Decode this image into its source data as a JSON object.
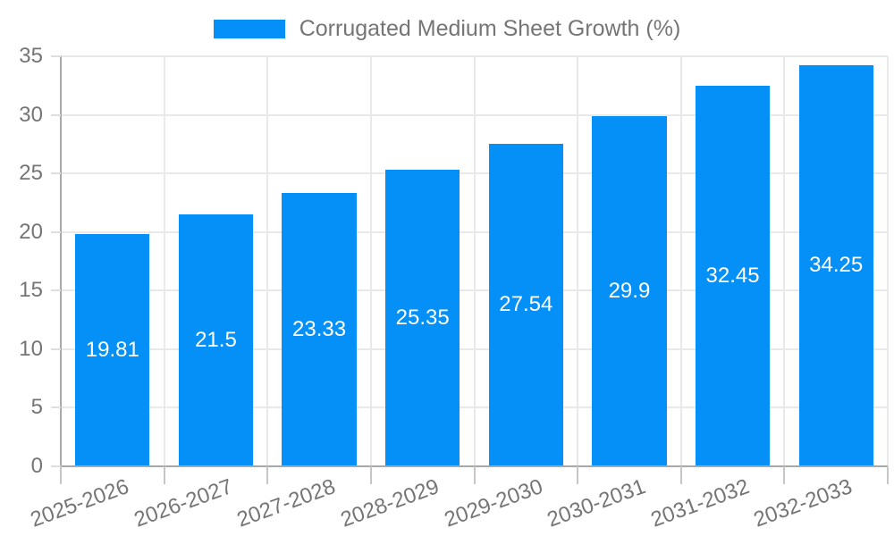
{
  "chart_data": {
    "type": "bar",
    "title": "",
    "legend": "Corrugated Medium Sheet Growth (%)",
    "legend_position": "top-center",
    "categories": [
      "2025-2026",
      "2026-2027",
      "2027-2028",
      "2028-2029",
      "2029-2030",
      "2030-2031",
      "2031-2032",
      "2032-2033"
    ],
    "values": [
      19.81,
      21.5,
      23.33,
      25.35,
      27.54,
      29.9,
      32.45,
      34.25
    ],
    "value_labels": [
      "19.81",
      "21.5",
      "23.33",
      "25.35",
      "27.54",
      "29.9",
      "32.45",
      "34.25"
    ],
    "xlabel": "",
    "ylabel": "",
    "ylim": [
      0,
      35
    ],
    "yticks": [
      0,
      5,
      10,
      15,
      20,
      25,
      30,
      35
    ],
    "grid": true,
    "colors": {
      "bar": "#0590f7",
      "value_label": "#ffffff",
      "grid": "#e9e9e9",
      "axis": "#a8a8a8",
      "x_tick": "#c6c6c6",
      "y_tick": "#dedede",
      "tick_text": "#757575"
    }
  }
}
